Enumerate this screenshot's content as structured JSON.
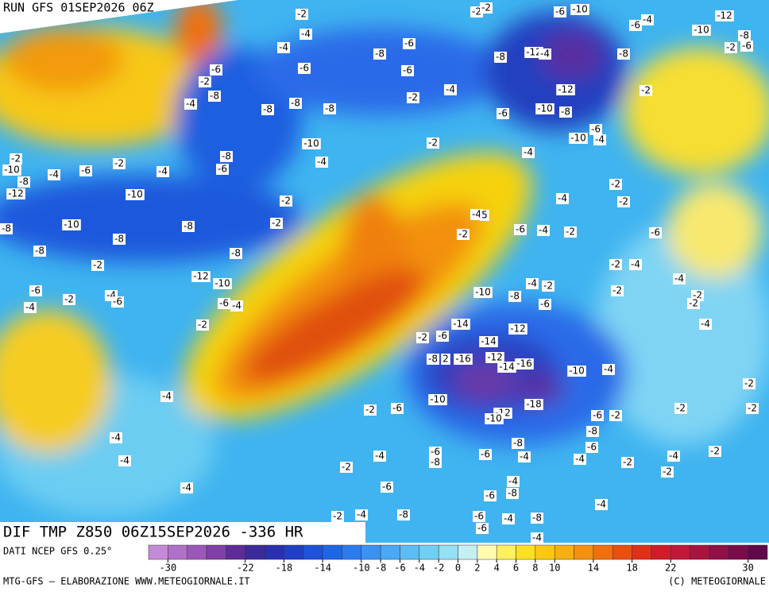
{
  "header": {
    "title": "RUN GFS 01SEP2026 06Z"
  },
  "map": {
    "caption": "DIF TMP Z850 06Z15SEP2026 -336 HR",
    "labels": [
      "-2",
      "-2",
      "-2",
      "-6",
      "-10",
      "-6",
      "-4",
      "-12",
      "-10",
      "-8",
      "-2",
      "-6",
      "-4",
      "-4",
      "-6",
      "-8",
      "-8",
      "-12",
      "-4",
      "-8",
      "-6",
      "-6",
      "-6",
      "-2",
      "-8",
      "-4",
      "-2",
      "-4",
      "-12",
      "-2",
      "-8",
      "-8",
      "-8",
      "-6",
      "-10",
      "-8",
      "-6",
      "-10",
      "-4",
      "-10",
      "-2",
      "-4",
      "-8",
      "-4",
      "-2",
      "-10",
      "-8",
      "-4",
      "-6",
      "-2",
      "-4",
      "-6",
      "-12",
      "-10",
      "-2",
      "-4",
      "-2",
      "-2",
      "-4",
      "5",
      "-2",
      "-10",
      "-8",
      "-8",
      "-6",
      "-4",
      "-2",
      "-2",
      "-6",
      "-8",
      "-8",
      "-8",
      "-2",
      "-2",
      "-4",
      "-12",
      "-10",
      "-6",
      "-4",
      "-4",
      "-2",
      "-10",
      "-8",
      "-2",
      "-4",
      "-2",
      "-6",
      "-6",
      "-4",
      "-6",
      "-2",
      "-2",
      "-4",
      "-2",
      "-14",
      "-4",
      "-2",
      "-6",
      "-14",
      "-12",
      "-8",
      "2",
      "-16",
      "-12",
      "-14",
      "-16",
      "-10",
      "-4",
      "-2",
      "-4",
      "-10",
      "-18",
      "-2",
      "-6",
      "-12",
      "-10",
      "-6",
      "-2",
      "-2",
      "-2",
      "-8",
      "-4",
      "-8",
      "-6",
      "-6",
      "-4",
      "-6",
      "-4",
      "-4",
      "-2",
      "-4",
      "-2",
      "-4",
      "-8",
      "-2",
      "-2",
      "-4",
      "-6",
      "-4",
      "-6",
      "-8",
      "-4",
      "-2",
      "-4",
      "-8",
      "-6",
      "-4",
      "-6",
      "-4",
      "-8"
    ]
  },
  "colorbar": {
    "colors": [
      "#c58ad6",
      "#b070c8",
      "#9a58b8",
      "#8040a8",
      "#5e2c98",
      "#3c2a9a",
      "#2a2fb0",
      "#1f3fc6",
      "#1e52d8",
      "#1f66e4",
      "#2a7cec",
      "#3a92f2",
      "#4aa8f4",
      "#5cbcf4",
      "#70d0f4",
      "#94e0f4",
      "#c4f0f4",
      "#fffbb0",
      "#fff060",
      "#ffe020",
      "#fcc810",
      "#f8b010",
      "#f59010",
      "#f07010",
      "#e85010",
      "#e03018",
      "#d01c28",
      "#c01838",
      "#a81440",
      "#901048",
      "#7a0c4a",
      "#60084a"
    ],
    "ticks": [
      -30,
      -22,
      -18,
      -14,
      -10,
      -8,
      -6,
      -4,
      -2,
      0,
      2,
      4,
      6,
      8,
      10,
      14,
      18,
      22,
      30
    ]
  },
  "footer": {
    "source": "DATI NCEP GFS 0.25°",
    "credit": "MTG-GFS — ELABORAZIONE WWW.METEOGIORNALE.IT",
    "copyright": "(C) METEOGIORNALE"
  }
}
